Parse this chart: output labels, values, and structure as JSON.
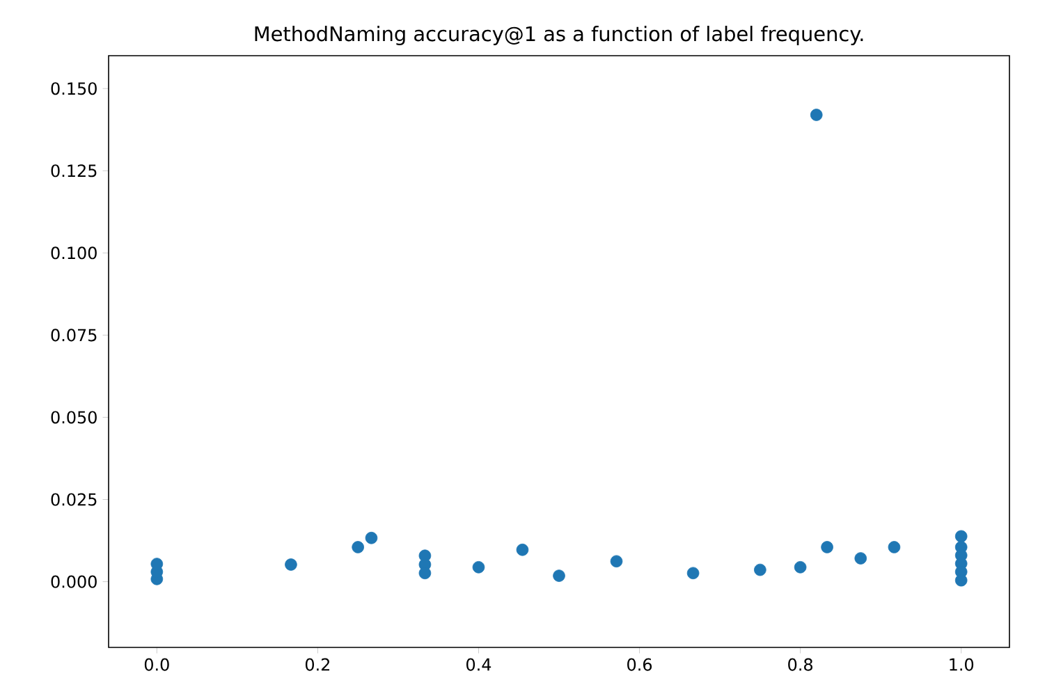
{
  "chart_data": {
    "type": "scatter",
    "title": "MethodNaming accuracy@1 as a function of label frequency.",
    "x": [
      0,
      0,
      0,
      0.1667,
      0.25,
      0.2667,
      0.3333,
      0.3333,
      0.3333,
      0.4,
      0.4545,
      0.5,
      0.5714,
      0.6667,
      0.75,
      0.8,
      0.82,
      0.8333,
      0.875,
      0.9167,
      1,
      1,
      1,
      1,
      1,
      1
    ],
    "values": [
      0.0008,
      0.003,
      0.0054,
      0.0052,
      0.0105,
      0.0133,
      0.0079,
      0.0052,
      0.0026,
      0.0044,
      0.0097,
      0.0018,
      0.0062,
      0.0026,
      0.0036,
      0.0044,
      0.142,
      0.0105,
      0.0071,
      0.0105,
      0.0138,
      0.0105,
      0.008,
      0.0055,
      0.003,
      0.0004
    ],
    "color": "#1f77b4",
    "marker": "circle",
    "xlim": [
      -0.06,
      1.06
    ],
    "ylim": [
      -0.02,
      0.16
    ],
    "xticks": [
      {
        "value": 0,
        "label": "0.0"
      },
      {
        "value": 0.2,
        "label": "0.2"
      },
      {
        "value": 0.4,
        "label": "0.4"
      },
      {
        "value": 0.6,
        "label": "0.6"
      },
      {
        "value": 0.8,
        "label": "0.8"
      },
      {
        "value": 1,
        "label": "1.0"
      }
    ],
    "yticks": [
      {
        "value": 0,
        "label": "0.000"
      },
      {
        "value": 0.025,
        "label": "0.025"
      },
      {
        "value": 0.05,
        "label": "0.050"
      },
      {
        "value": 0.075,
        "label": "0.075"
      },
      {
        "value": 0.1,
        "label": "0.100"
      },
      {
        "value": 0.125,
        "label": "0.125"
      },
      {
        "value": 0.15,
        "label": "0.150"
      }
    ]
  }
}
